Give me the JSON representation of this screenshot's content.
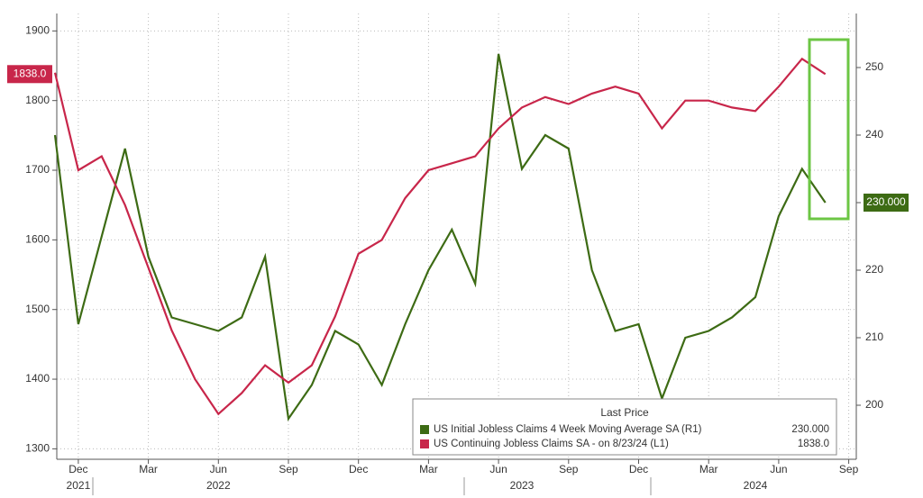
{
  "chart_data": {
    "type": "line",
    "x": [
      "2021-11",
      "2021-12",
      "2022-01",
      "2022-02",
      "2022-03",
      "2022-04",
      "2022-05",
      "2022-06",
      "2022-07",
      "2022-08",
      "2022-09",
      "2022-10",
      "2022-11",
      "2022-12",
      "2023-01",
      "2023-02",
      "2023-03",
      "2023-04",
      "2023-05",
      "2023-06",
      "2023-07",
      "2023-08",
      "2023-09",
      "2023-10",
      "2023-11",
      "2023-12",
      "2024-01",
      "2024-02",
      "2024-03",
      "2024-04",
      "2024-05",
      "2024-06",
      "2024-07",
      "2024-08"
    ],
    "xticks": [
      {
        "value": "2021-12",
        "label": "Dec"
      },
      {
        "value": "2022-03",
        "label": "Mar"
      },
      {
        "value": "2022-06",
        "label": "Jun"
      },
      {
        "value": "2022-09",
        "label": "Sep"
      },
      {
        "value": "2022-12",
        "label": "Dec"
      },
      {
        "value": "2023-03",
        "label": "Mar"
      },
      {
        "value": "2023-06",
        "label": "Jun"
      },
      {
        "value": "2023-09",
        "label": "Sep"
      },
      {
        "value": "2023-12",
        "label": "Dec"
      },
      {
        "value": "2024-03",
        "label": "Mar"
      },
      {
        "value": "2024-06",
        "label": "Jun"
      },
      {
        "value": "2024-09",
        "label": "Sep"
      }
    ],
    "year_labels": [
      {
        "value": "2021-12",
        "label": "2021"
      },
      {
        "value": "2022-06",
        "label": "2022"
      },
      {
        "value": "2023-07",
        "label": "2023"
      },
      {
        "value": "2024-05",
        "label": "2024"
      }
    ],
    "ylim": [
      1285,
      1925
    ],
    "yticks": [
      1300,
      1400,
      1500,
      1600,
      1700,
      1800,
      1900
    ],
    "y2lim": [
      192,
      258
    ],
    "y2ticks": [
      200,
      210,
      220,
      230,
      240,
      250
    ],
    "grid": true,
    "legend_title": "Last Price",
    "series": [
      {
        "name": "US Initial Jobless Claims 4 Week Moving Average SA  (R1)",
        "color": "#3d6b14",
        "axis": "y2",
        "last_label": "230.000",
        "values": [
          240,
          212,
          225,
          238,
          222,
          213,
          212,
          211,
          213,
          222,
          198,
          203,
          211,
          209,
          203,
          212,
          220,
          226,
          218,
          252,
          235,
          240,
          238,
          220,
          211,
          212,
          201,
          210,
          211,
          213,
          216,
          228,
          235,
          230
        ]
      },
      {
        "name": "US Continuing Jobless Claims SA - on 8/23/24  (L1)",
        "color": "#c8264a",
        "axis": "y",
        "last_label": "1838.0",
        "values": [
          1840,
          1700,
          1720,
          1650,
          1560,
          1470,
          1400,
          1350,
          1380,
          1420,
          1395,
          1420,
          1490,
          1580,
          1600,
          1660,
          1700,
          1710,
          1720,
          1760,
          1790,
          1805,
          1795,
          1810,
          1820,
          1810,
          1760,
          1800,
          1800,
          1790,
          1785,
          1820,
          1860,
          1838
        ]
      }
    ]
  }
}
